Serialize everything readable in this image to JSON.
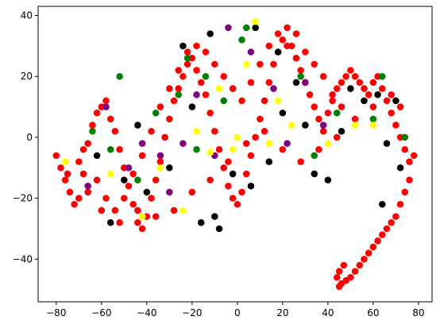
{
  "chart_data": {
    "type": "scatter",
    "title": "",
    "xlabel": "",
    "ylabel": "",
    "xlim": [
      -88,
      86
    ],
    "ylim": [
      -54,
      43
    ],
    "grid": false,
    "legend": "none",
    "x_ticks": [
      -80,
      -60,
      -40,
      -20,
      0,
      20,
      40,
      60,
      80
    ],
    "y_ticks": [
      -40,
      -20,
      0,
      20,
      40
    ],
    "x_tick_labels": [
      "−80",
      "−60",
      "−40",
      "−20",
      "0",
      "20",
      "40",
      "60",
      "80"
    ],
    "y_tick_labels": [
      "−40",
      "−20",
      "0",
      "20",
      "40"
    ],
    "series": [
      {
        "color": "#ff0000",
        "marker_size": 6.4,
        "values_note_free": true,
        "points": [
          [
            -80,
            -6
          ],
          [
            -78,
            -10
          ],
          [
            -76,
            -14
          ],
          [
            -74,
            -18
          ],
          [
            -72,
            -22
          ],
          [
            -70,
            -8
          ],
          [
            -68,
            -12
          ],
          [
            -66,
            -2
          ],
          [
            -64,
            4
          ],
          [
            -62,
            8
          ],
          [
            -60,
            10
          ],
          [
            -58,
            12
          ],
          [
            -56,
            6
          ],
          [
            -54,
            2
          ],
          [
            -52,
            -4
          ],
          [
            -50,
            -10
          ],
          [
            -48,
            -16
          ],
          [
            -46,
            -22
          ],
          [
            -44,
            -28
          ],
          [
            -42,
            -30
          ],
          [
            -40,
            -26
          ],
          [
            -38,
            -20
          ],
          [
            -36,
            -14
          ],
          [
            -34,
            -8
          ],
          [
            -32,
            0
          ],
          [
            -30,
            6
          ],
          [
            -28,
            12
          ],
          [
            -26,
            16
          ],
          [
            -24,
            20
          ],
          [
            -22,
            24
          ],
          [
            -20,
            26
          ],
          [
            -18,
            22
          ],
          [
            -16,
            18
          ],
          [
            -14,
            14
          ],
          [
            -12,
            8
          ],
          [
            -10,
            2
          ],
          [
            -8,
            -4
          ],
          [
            -6,
            -10
          ],
          [
            -4,
            -16
          ],
          [
            -2,
            -20
          ],
          [
            0,
            -22
          ],
          [
            2,
            -18
          ],
          [
            4,
            -12
          ],
          [
            6,
            -6
          ],
          [
            8,
            0
          ],
          [
            10,
            6
          ],
          [
            12,
            12
          ],
          [
            14,
            18
          ],
          [
            16,
            24
          ],
          [
            18,
            28
          ],
          [
            20,
            32
          ],
          [
            22,
            36
          ],
          [
            24,
            30
          ],
          [
            26,
            26
          ],
          [
            28,
            22
          ],
          [
            30,
            18
          ],
          [
            32,
            14
          ],
          [
            34,
            10
          ],
          [
            36,
            6
          ],
          [
            38,
            2
          ],
          [
            40,
            8
          ],
          [
            42,
            12
          ],
          [
            44,
            16
          ],
          [
            46,
            18
          ],
          [
            48,
            20
          ],
          [
            50,
            22
          ],
          [
            52,
            20
          ],
          [
            54,
            18
          ],
          [
            56,
            16
          ],
          [
            58,
            14
          ],
          [
            60,
            18
          ],
          [
            62,
            20
          ],
          [
            64,
            16
          ],
          [
            66,
            12
          ],
          [
            68,
            8
          ],
          [
            70,
            4
          ],
          [
            72,
            0
          ],
          [
            74,
            -4
          ],
          [
            76,
            -8
          ],
          [
            78,
            -6
          ],
          [
            76,
            -14
          ],
          [
            74,
            -18
          ],
          [
            72,
            -22
          ],
          [
            70,
            -26
          ],
          [
            68,
            -28
          ],
          [
            66,
            -30
          ],
          [
            64,
            -32
          ],
          [
            62,
            -34
          ],
          [
            60,
            -36
          ],
          [
            58,
            -38
          ],
          [
            56,
            -40
          ],
          [
            54,
            -42
          ],
          [
            52,
            -44
          ],
          [
            50,
            -46
          ],
          [
            48,
            -47
          ],
          [
            46,
            -48
          ],
          [
            45,
            -49
          ],
          [
            44,
            -46
          ],
          [
            45,
            -44
          ],
          [
            47,
            -42
          ],
          [
            -70,
            -20
          ],
          [
            -66,
            -18
          ],
          [
            -62,
            -14
          ],
          [
            -58,
            -20
          ],
          [
            -54,
            -24
          ],
          [
            -50,
            -20
          ],
          [
            -46,
            -12
          ],
          [
            -42,
            -6
          ],
          [
            -38,
            2
          ],
          [
            -34,
            10
          ],
          [
            -30,
            16
          ],
          [
            -26,
            22
          ],
          [
            -22,
            28
          ],
          [
            -18,
            30
          ],
          [
            -14,
            28
          ],
          [
            -10,
            24
          ],
          [
            -6,
            20
          ],
          [
            -2,
            16
          ],
          [
            2,
            12
          ],
          [
            6,
            18
          ],
          [
            10,
            24
          ],
          [
            14,
            30
          ],
          [
            18,
            34
          ],
          [
            22,
            30
          ],
          [
            26,
            34
          ],
          [
            30,
            28
          ],
          [
            34,
            24
          ],
          [
            38,
            20
          ],
          [
            42,
            14
          ],
          [
            46,
            10
          ],
          [
            -75,
            -12
          ],
          [
            -68,
            -4
          ],
          [
            -60,
            -24
          ],
          [
            -52,
            -28
          ],
          [
            -44,
            -24
          ],
          [
            -36,
            -26
          ],
          [
            -28,
            -24
          ],
          [
            -20,
            -18
          ],
          [
            -12,
            -14
          ],
          [
            -4,
            -8
          ],
          [
            4,
            -2
          ],
          [
            12,
            2
          ],
          [
            20,
            -4
          ],
          [
            28,
            -8
          ],
          [
            36,
            -4
          ],
          [
            44,
            0
          ],
          [
            52,
            6
          ],
          [
            60,
            10
          ],
          [
            68,
            14
          ],
          [
            72,
            10
          ]
        ]
      },
      {
        "color": "#000000",
        "marker_size": 6.4,
        "points": [
          [
            -62,
            -6
          ],
          [
            -50,
            -14
          ],
          [
            -40,
            -18
          ],
          [
            -30,
            -10
          ],
          [
            -16,
            -28
          ],
          [
            -10,
            -26
          ],
          [
            -8,
            -30
          ],
          [
            -2,
            -12
          ],
          [
            6,
            -16
          ],
          [
            14,
            -8
          ],
          [
            20,
            8
          ],
          [
            26,
            18
          ],
          [
            30,
            4
          ],
          [
            34,
            -12
          ],
          [
            40,
            -14
          ],
          [
            46,
            2
          ],
          [
            50,
            16
          ],
          [
            56,
            12
          ],
          [
            62,
            14
          ],
          [
            70,
            12
          ],
          [
            66,
            -2
          ],
          [
            72,
            -10
          ],
          [
            64,
            -22
          ],
          [
            -56,
            -28
          ],
          [
            -24,
            30
          ],
          [
            -12,
            34
          ],
          [
            8,
            36
          ],
          [
            18,
            28
          ],
          [
            -44,
            4
          ],
          [
            -20,
            10
          ]
        ]
      },
      {
        "color": "#008000",
        "marker_size": 6.4,
        "points": [
          [
            -64,
            2
          ],
          [
            -56,
            -4
          ],
          [
            -44,
            -14
          ],
          [
            -26,
            14
          ],
          [
            -22,
            26
          ],
          [
            -14,
            20
          ],
          [
            -6,
            12
          ],
          [
            2,
            32
          ],
          [
            4,
            36
          ],
          [
            28,
            20
          ],
          [
            34,
            -6
          ],
          [
            44,
            8
          ],
          [
            60,
            6
          ],
          [
            64,
            20
          ],
          [
            74,
            0
          ],
          [
            -52,
            20
          ],
          [
            -36,
            8
          ],
          [
            -18,
            -4
          ]
        ]
      },
      {
        "color": "#800080",
        "marker_size": 6.4,
        "points": [
          [
            -58,
            10
          ],
          [
            -48,
            -10
          ],
          [
            -42,
            -2
          ],
          [
            -34,
            -6
          ],
          [
            -24,
            -2
          ],
          [
            -18,
            14
          ],
          [
            -10,
            -6
          ],
          [
            -4,
            36
          ],
          [
            6,
            28
          ],
          [
            16,
            16
          ],
          [
            22,
            -2
          ],
          [
            30,
            18
          ],
          [
            38,
            4
          ],
          [
            -66,
            -16
          ],
          [
            -30,
            -18
          ]
        ]
      },
      {
        "color": "#ffff00",
        "marker_size": 6.4,
        "points": [
          [
            -76,
            -8
          ],
          [
            -56,
            -12
          ],
          [
            -42,
            -26
          ],
          [
            -34,
            -10
          ],
          [
            -24,
            -24
          ],
          [
            -18,
            2
          ],
          [
            -12,
            -5
          ],
          [
            -2,
            -4
          ],
          [
            4,
            24
          ],
          [
            8,
            38
          ],
          [
            14,
            -2
          ],
          [
            24,
            4
          ],
          [
            40,
            -2
          ],
          [
            52,
            4
          ],
          [
            60,
            4
          ],
          [
            -8,
            16
          ],
          [
            0,
            0
          ],
          [
            18,
            12
          ]
        ]
      }
    ]
  }
}
